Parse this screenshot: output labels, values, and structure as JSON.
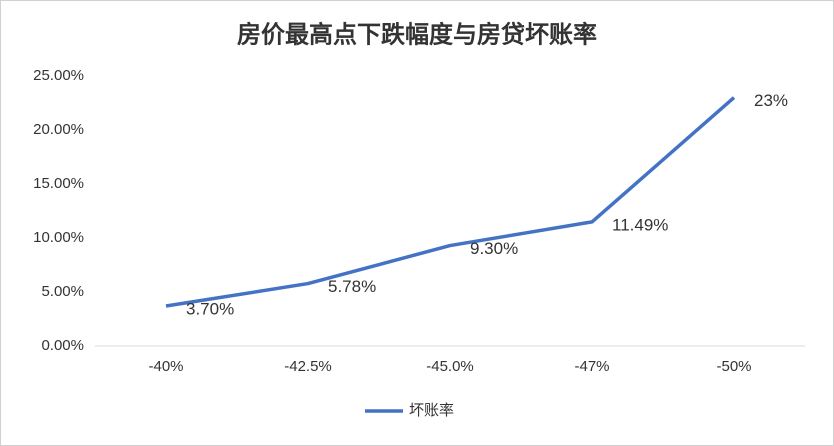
{
  "chart_data": {
    "type": "line",
    "title": "房价最高点下跌幅度与房贷坏账率",
    "categories": [
      "-40%",
      "-42.5%",
      "-45.0%",
      "-47%",
      "-50%"
    ],
    "series": [
      {
        "name": "坏账率",
        "color": "#4472c4",
        "values": [
          3.7,
          5.78,
          9.3,
          11.49,
          23
        ],
        "value_labels": [
          "3.70%",
          "5.78%",
          "9.30%",
          "11.49%",
          "23%"
        ]
      }
    ],
    "ylim": [
      0,
      25
    ],
    "yticks": [
      {
        "value": 0,
        "label": "0.00%"
      },
      {
        "value": 5,
        "label": "5.00%"
      },
      {
        "value": 10,
        "label": "10.00%"
      },
      {
        "value": 15,
        "label": "15.00%"
      },
      {
        "value": 20,
        "label": "20.00%"
      },
      {
        "value": 25,
        "label": "25.00%"
      }
    ],
    "grid": false,
    "legend": "bottom"
  }
}
